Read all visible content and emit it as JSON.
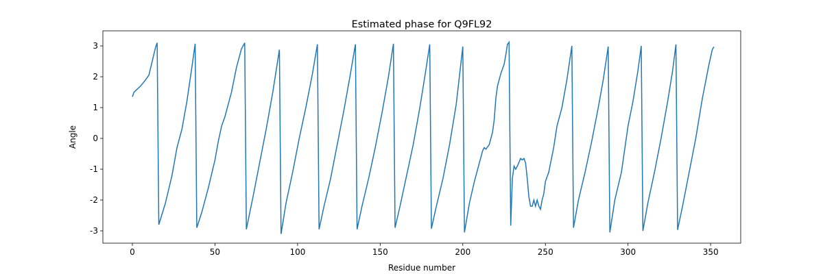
{
  "chart_data": {
    "type": "line",
    "title": "Estimated phase for Q9FL92",
    "xlabel": "Residue number",
    "ylabel": "Angle",
    "xlim": [
      -17.85,
      368.2
    ],
    "ylim": [
      -3.4,
      3.49
    ],
    "xticks": [
      0,
      50,
      100,
      150,
      200,
      250,
      300,
      350
    ],
    "yticks": [
      -3,
      -2,
      -1,
      0,
      1,
      2,
      3
    ],
    "series": [
      {
        "name": "phase",
        "color": "#1f77b4",
        "x": [
          0,
          1,
          2,
          5,
          8,
          10,
          12,
          14,
          15,
          16,
          20,
          24,
          27,
          30,
          33,
          36,
          38,
          39,
          42,
          46,
          50,
          52,
          54,
          56,
          58,
          60,
          63,
          66,
          68,
          69,
          73,
          77,
          81,
          85,
          89,
          90,
          93,
          97,
          101,
          105,
          109,
          112,
          113,
          116,
          120,
          124,
          128,
          132,
          135,
          136,
          139,
          143,
          147,
          151,
          155,
          158,
          159,
          162,
          166,
          170,
          174,
          177,
          180,
          181,
          184,
          188,
          192,
          196,
          200,
          201,
          204,
          207,
          210,
          212,
          213,
          214,
          216,
          218,
          219,
          220,
          221,
          223,
          225,
          226,
          227,
          228,
          229,
          230,
          231,
          232,
          233,
          235,
          236,
          237,
          238,
          239,
          240,
          241,
          242,
          243,
          244,
          245,
          246,
          247,
          248,
          249,
          250,
          252,
          255,
          257,
          260,
          263,
          266,
          267,
          270,
          274,
          278,
          282,
          285,
          288,
          289,
          292,
          296,
          300,
          303,
          306,
          308,
          309,
          312,
          316,
          320,
          324,
          327,
          329,
          330,
          333,
          337,
          341,
          345,
          349,
          351,
          352
        ],
        "values": [
          1.35,
          1.5,
          1.55,
          1.7,
          1.9,
          2.05,
          2.5,
          2.95,
          3.1,
          -2.8,
          -2.1,
          -1.2,
          -0.3,
          0.3,
          1.2,
          2.3,
          3.07,
          -2.9,
          -2.4,
          -1.6,
          -0.7,
          -0.1,
          0.4,
          0.7,
          1.1,
          1.5,
          2.3,
          2.9,
          3.1,
          -2.95,
          -1.9,
          -0.8,
          0.3,
          1.5,
          2.88,
          -3.1,
          -2.1,
          -1.1,
          0,
          1.0,
          2.1,
          3.05,
          -2.95,
          -2.2,
          -1.3,
          -0.2,
          0.9,
          2.1,
          3.05,
          -2.95,
          -2.2,
          -1.3,
          -0.3,
          0.8,
          2.0,
          3.07,
          -2.9,
          -2.2,
          -1.2,
          -0.2,
          1.0,
          2.0,
          3.05,
          -2.93,
          -2.2,
          -1.3,
          -0.2,
          1.1,
          2.98,
          -3.05,
          -2.1,
          -1.4,
          -0.8,
          -0.4,
          -0.3,
          -0.35,
          -0.2,
          0.2,
          0.6,
          1.3,
          1.7,
          2.1,
          2.4,
          2.7,
          3.05,
          3.12,
          -2.83,
          -1.3,
          -0.9,
          -1.0,
          -0.9,
          -0.65,
          -0.7,
          -0.65,
          -0.8,
          -1.3,
          -1.9,
          -2.2,
          -2.2,
          -2.0,
          -2.2,
          -2.0,
          -2.2,
          -2.3,
          -2.0,
          -1.8,
          -1.4,
          -1.1,
          -0.3,
          0.4,
          1.0,
          1.9,
          3.0,
          -2.9,
          -2.0,
          -1.1,
          -0.1,
          1.0,
          1.9,
          2.98,
          -3.05,
          -2.0,
          -1.1,
          0.4,
          1.2,
          2.2,
          3.0,
          -3.0,
          -2.1,
          -1.1,
          0.0,
          1.2,
          2.2,
          3.05,
          -2.97,
          -2.2,
          -1.1,
          0.0,
          1.3,
          2.4,
          2.88,
          2.97
        ]
      }
    ]
  }
}
